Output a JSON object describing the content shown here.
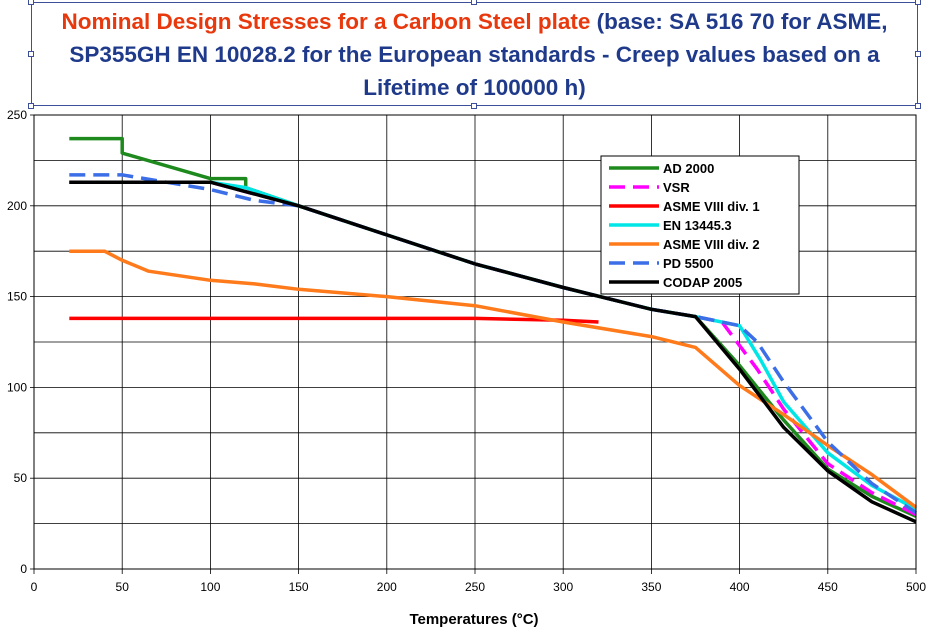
{
  "chart_data": {
    "type": "line",
    "title_red": "Nominal Design Stresses for a Carbon Steel plate",
    "title_blue": " (base: SA 516 70 for ASME, SP355GH EN 10028.2 for the European standards - Creep values based on a Lifetime of 100000 h)",
    "xlabel": "Temperatures (°C)",
    "ylabel": "",
    "xlim": [
      0,
      500
    ],
    "ylim": [
      0,
      250
    ],
    "xticks": [
      "0",
      "50",
      "100",
      "150",
      "200",
      "250",
      "300",
      "350",
      "400",
      "450",
      "500"
    ],
    "yticks": [
      "0",
      "50",
      "100",
      "150",
      "200",
      "250"
    ],
    "grid": true,
    "legend_position": "top-right",
    "series": [
      {
        "name": "AD 2000",
        "color": "#1e8a1e",
        "dash": "solid",
        "points": [
          [
            20,
            237
          ],
          [
            50,
            237
          ],
          [
            50,
            229
          ],
          [
            100,
            215
          ],
          [
            120,
            215
          ],
          [
            120,
            210
          ],
          [
            150,
            200
          ],
          [
            200,
            184
          ],
          [
            250,
            168
          ],
          [
            300,
            155
          ],
          [
            350,
            143
          ],
          [
            375,
            139
          ],
          [
            400,
            112
          ],
          [
            425,
            82
          ],
          [
            450,
            55
          ],
          [
            475,
            40
          ],
          [
            500,
            29
          ]
        ]
      },
      {
        "name": "VSR",
        "color": "#ff00ff",
        "dash": "dashed",
        "points": [
          [
            20,
            213
          ],
          [
            100,
            213
          ],
          [
            150,
            200
          ],
          [
            200,
            184
          ],
          [
            250,
            168
          ],
          [
            300,
            155
          ],
          [
            350,
            143
          ],
          [
            375,
            139
          ],
          [
            390,
            136
          ],
          [
            410,
            110
          ],
          [
            425,
            88
          ],
          [
            450,
            58
          ],
          [
            475,
            42
          ],
          [
            500,
            30
          ]
        ]
      },
      {
        "name": "ASME VIII div. 1",
        "color": "#ff0000",
        "dash": "solid",
        "points": [
          [
            20,
            138
          ],
          [
            250,
            138
          ],
          [
            300,
            137
          ],
          [
            320,
            136
          ]
        ]
      },
      {
        "name": "EN 13445.3",
        "color": "#00e5e5",
        "dash": "solid",
        "points": [
          [
            20,
            213
          ],
          [
            100,
            213
          ],
          [
            120,
            210
          ],
          [
            150,
            200
          ],
          [
            200,
            184
          ],
          [
            250,
            168
          ],
          [
            300,
            155
          ],
          [
            350,
            143
          ],
          [
            375,
            139
          ],
          [
            400,
            134
          ],
          [
            412,
            115
          ],
          [
            425,
            92
          ],
          [
            450,
            64
          ],
          [
            475,
            46
          ],
          [
            500,
            33
          ]
        ]
      },
      {
        "name": "ASME VIII div. 2",
        "color": "#ff7a1a",
        "dash": "solid",
        "points": [
          [
            20,
            175
          ],
          [
            40,
            175
          ],
          [
            50,
            170
          ],
          [
            65,
            164
          ],
          [
            100,
            159
          ],
          [
            125,
            157
          ],
          [
            150,
            154
          ],
          [
            200,
            150
          ],
          [
            250,
            145
          ],
          [
            300,
            136
          ],
          [
            350,
            128
          ],
          [
            375,
            122
          ],
          [
            400,
            101
          ],
          [
            425,
            85
          ],
          [
            450,
            68
          ],
          [
            475,
            52
          ],
          [
            500,
            34
          ]
        ]
      },
      {
        "name": "PD 5500",
        "color": "#3c6ee8",
        "dash": "dashed",
        "points": [
          [
            20,
            217
          ],
          [
            50,
            217
          ],
          [
            100,
            209
          ],
          [
            125,
            203
          ],
          [
            150,
            200
          ],
          [
            200,
            184
          ],
          [
            250,
            168
          ],
          [
            300,
            155
          ],
          [
            350,
            143
          ],
          [
            375,
            139
          ],
          [
            400,
            134
          ],
          [
            410,
            125
          ],
          [
            425,
            103
          ],
          [
            450,
            70
          ],
          [
            475,
            47
          ],
          [
            500,
            31
          ]
        ]
      },
      {
        "name": "CODAP 2005",
        "color": "#000000",
        "dash": "solid",
        "points": [
          [
            20,
            213
          ],
          [
            100,
            213
          ],
          [
            150,
            200
          ],
          [
            200,
            184
          ],
          [
            250,
            168
          ],
          [
            300,
            155
          ],
          [
            350,
            143
          ],
          [
            375,
            139
          ],
          [
            400,
            110
          ],
          [
            425,
            78
          ],
          [
            450,
            54
          ],
          [
            475,
            37
          ],
          [
            500,
            26
          ]
        ]
      }
    ]
  }
}
